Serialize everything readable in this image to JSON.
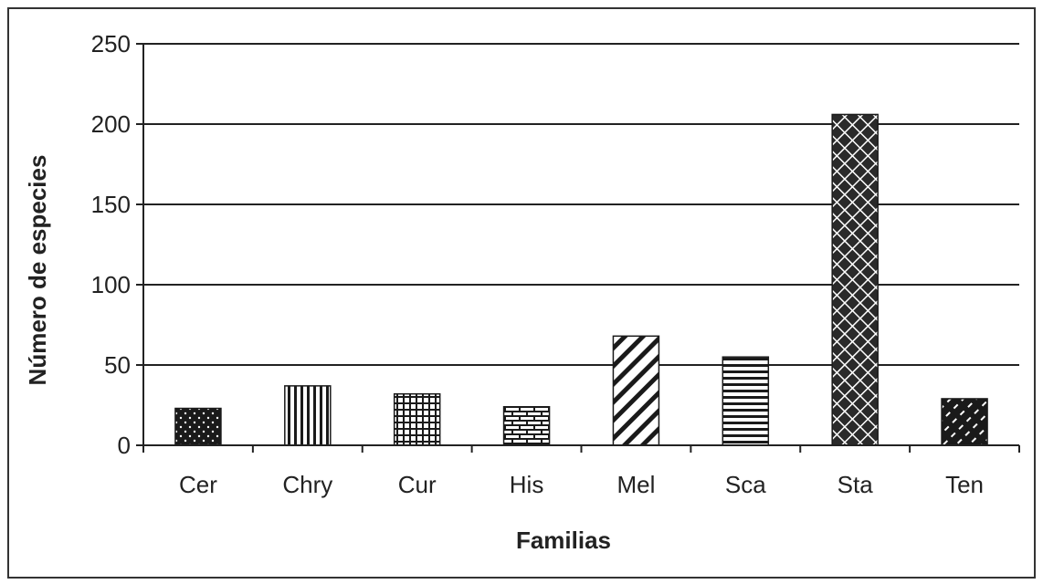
{
  "chart_data": {
    "type": "bar",
    "title": "",
    "xlabel": "Familias",
    "ylabel": "Número de especies",
    "categories": [
      "Cer",
      "Chry",
      "Cur",
      "His",
      "Mel",
      "Sca",
      "Sta",
      "Ten"
    ],
    "values": [
      23,
      37,
      32,
      24,
      68,
      55,
      206,
      29
    ],
    "ylim": [
      0,
      250
    ],
    "yticks": [
      0,
      50,
      100,
      150,
      200,
      250
    ],
    "ytick_labels": [
      "0",
      "50",
      "100",
      "150",
      "200",
      "250"
    ],
    "grid": "horizontal major lines",
    "legend": "none",
    "patterns": [
      "dots",
      "vertical-lines",
      "grid",
      "brick",
      "diagonal-lines",
      "horizontal-lines",
      "diagonal-crosshatch",
      "dashed-diagonal"
    ]
  }
}
